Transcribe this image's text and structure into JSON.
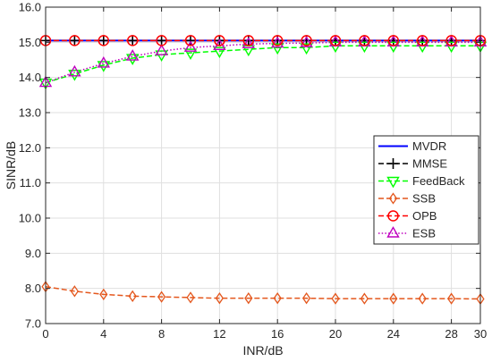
{
  "chart_data": {
    "type": "line",
    "xlabel": "INR/dB",
    "ylabel": "SINR/dB",
    "xlim": [
      0,
      30
    ],
    "ylim": [
      7.0,
      16.0
    ],
    "x": [
      0,
      2,
      4,
      6,
      8,
      10,
      12,
      14,
      16,
      18,
      20,
      22,
      24,
      26,
      28,
      30
    ],
    "x_ticks": [
      0,
      4,
      8,
      12,
      16,
      20,
      24,
      28,
      30
    ],
    "x_tick_labels": [
      "0",
      "4",
      "8",
      "12",
      "16",
      "20",
      "24",
      "28",
      "30"
    ],
    "y_ticks": [
      7.0,
      8.0,
      9.0,
      10.0,
      11.0,
      12.0,
      13.0,
      14.0,
      15.0,
      16.0
    ],
    "y_tick_labels": [
      "7.0",
      "8.0",
      "9.0",
      "10.0",
      "11.0",
      "12.0",
      "13.0",
      "14.0",
      "15.0",
      "16.0"
    ],
    "grid": true,
    "legend_position": "center-right",
    "series": [
      {
        "name": "MVDR",
        "color": "#0000ff",
        "line": "solid",
        "marker": "none",
        "values": [
          15.05,
          15.05,
          15.05,
          15.05,
          15.05,
          15.05,
          15.05,
          15.05,
          15.05,
          15.05,
          15.05,
          15.05,
          15.05,
          15.05,
          15.05,
          15.05
        ]
      },
      {
        "name": "MMSE",
        "color": "#000000",
        "line": "dashed",
        "marker": "plus",
        "values": [
          15.05,
          15.05,
          15.05,
          15.05,
          15.05,
          15.05,
          15.05,
          15.05,
          15.05,
          15.05,
          15.05,
          15.05,
          15.05,
          15.05,
          15.05,
          15.05
        ]
      },
      {
        "name": "FeedBack",
        "color": "#00ff00",
        "line": "dashed",
        "marker": "triangle-down",
        "values": [
          13.85,
          14.1,
          14.35,
          14.55,
          14.65,
          14.7,
          14.75,
          14.8,
          14.85,
          14.85,
          14.9,
          14.9,
          14.9,
          14.9,
          14.9,
          14.9
        ]
      },
      {
        "name": "SSB",
        "color": "#e4571d",
        "line": "dashed",
        "marker": "diamond",
        "values": [
          8.05,
          7.92,
          7.83,
          7.78,
          7.76,
          7.74,
          7.72,
          7.72,
          7.72,
          7.72,
          7.71,
          7.71,
          7.71,
          7.71,
          7.71,
          7.7
        ]
      },
      {
        "name": "OPB",
        "color": "#ff0000",
        "line": "dashed",
        "marker": "circle",
        "values": [
          15.05,
          15.05,
          15.05,
          15.05,
          15.05,
          15.05,
          15.05,
          15.05,
          15.05,
          15.05,
          15.05,
          15.05,
          15.05,
          15.05,
          15.05,
          15.05
        ]
      },
      {
        "name": "ESB",
        "color": "#bf00bf",
        "line": "dotted",
        "marker": "triangle-up",
        "values": [
          13.85,
          14.15,
          14.4,
          14.6,
          14.75,
          14.85,
          14.9,
          14.95,
          14.97,
          14.98,
          15.0,
          15.0,
          15.0,
          15.0,
          15.0,
          15.0
        ]
      }
    ]
  }
}
